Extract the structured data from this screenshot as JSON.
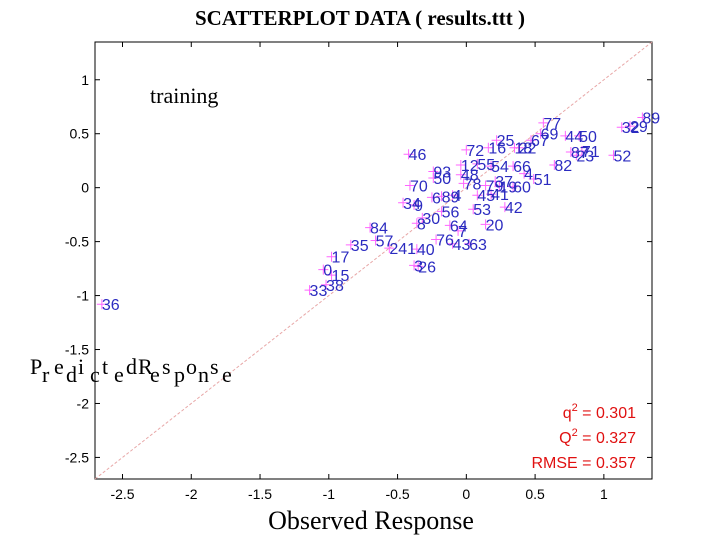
{
  "chart_data": {
    "type": "scatter",
    "title": "SCATTERPLOT DATA ( results.ttt )",
    "xlabel": "Observed Response",
    "ylabel": "Predicted Response",
    "subset_label": "training",
    "xlim": [
      -2.7,
      1.35
    ],
    "ylim": [
      -2.7,
      1.35
    ],
    "xticks": [
      -2.5,
      -2,
      -1.5,
      -1,
      -0.5,
      0,
      0.5,
      1
    ],
    "yticks": [
      1,
      0.5,
      0,
      -0.5,
      -1,
      -1.5,
      -2,
      -2.5
    ],
    "reference_line": "y = x",
    "stats": {
      "q2": "0.301",
      "Q2": "0.327",
      "RMSE": "0.357"
    },
    "stat_labels": {
      "q2": "q",
      "Q2": "Q",
      "RMSE": "RMSE",
      "exponent": "2",
      "equals": " = "
    },
    "colors": {
      "points": "#2b2bc0",
      "markers": "#ff66ff",
      "stats": "#e01010",
      "diagonal": "#e8a8a8"
    },
    "points": [
      {
        "id": "36",
        "x": -2.65,
        "y": -1.08
      },
      {
        "id": "33",
        "x": -1.14,
        "y": -0.95
      },
      {
        "id": "38",
        "x": -1.02,
        "y": -0.9
      },
      {
        "id": "15",
        "x": -0.98,
        "y": -0.81
      },
      {
        "id": "0",
        "x": -1.04,
        "y": -0.76
      },
      {
        "id": "17",
        "x": -0.98,
        "y": -0.64
      },
      {
        "id": "35",
        "x": -0.84,
        "y": -0.53
      },
      {
        "id": "57",
        "x": -0.66,
        "y": -0.49
      },
      {
        "id": "84",
        "x": -0.7,
        "y": -0.37
      },
      {
        "id": "241",
        "x": -0.56,
        "y": -0.56
      },
      {
        "id": "40",
        "x": -0.36,
        "y": -0.57
      },
      {
        "id": "3",
        "x": -0.38,
        "y": -0.72
      },
      {
        "id": "26",
        "x": -0.35,
        "y": -0.73
      },
      {
        "id": "76",
        "x": -0.22,
        "y": -0.48
      },
      {
        "id": "43",
        "x": -0.1,
        "y": -0.52
      },
      {
        "id": "63",
        "x": 0.02,
        "y": -0.52
      },
      {
        "id": "7",
        "x": -0.06,
        "y": -0.4
      },
      {
        "id": "64",
        "x": -0.12,
        "y": -0.35
      },
      {
        "id": "8",
        "x": -0.36,
        "y": -0.33
      },
      {
        "id": "20",
        "x": 0.14,
        "y": -0.34
      },
      {
        "id": "30",
        "x": -0.32,
        "y": -0.28
      },
      {
        "id": "56",
        "x": -0.18,
        "y": -0.22
      },
      {
        "id": "53",
        "x": 0.05,
        "y": -0.2
      },
      {
        "id": "42",
        "x": 0.28,
        "y": -0.18
      },
      {
        "id": "34",
        "x": -0.46,
        "y": -0.14
      },
      {
        "id": "9",
        "x": -0.38,
        "y": -0.16
      },
      {
        "id": "6",
        "x": -0.25,
        "y": -0.09
      },
      {
        "id": "89",
        "x": -0.18,
        "y": -0.08
      },
      {
        "id": "4",
        "x": -0.1,
        "y": -0.07
      },
      {
        "id": "45",
        "x": 0.08,
        "y": -0.07
      },
      {
        "id": "41",
        "x": 0.18,
        "y": -0.06
      },
      {
        "id": "70",
        "x": -0.41,
        "y": 0.02
      },
      {
        "id": "78",
        "x": -0.02,
        "y": 0.04
      },
      {
        "id": "79",
        "x": 0.14,
        "y": 0.02
      },
      {
        "id": "19",
        "x": 0.24,
        "y": 0.01
      },
      {
        "id": "60",
        "x": 0.34,
        "y": 0.01
      },
      {
        "id": "37",
        "x": 0.21,
        "y": 0.06
      },
      {
        "id": "4",
        "x": 0.42,
        "y": 0.13
      },
      {
        "id": "51",
        "x": 0.49,
        "y": 0.08
      },
      {
        "id": "93",
        "x": -0.24,
        "y": 0.15
      },
      {
        "id": "50",
        "x": -0.24,
        "y": 0.09
      },
      {
        "id": "48",
        "x": -0.04,
        "y": 0.12
      },
      {
        "id": "12",
        "x": -0.04,
        "y": 0.21
      },
      {
        "id": "55",
        "x": 0.08,
        "y": 0.22
      },
      {
        "id": "54",
        "x": 0.18,
        "y": 0.2
      },
      {
        "id": "66",
        "x": 0.34,
        "y": 0.2
      },
      {
        "id": "46",
        "x": -0.42,
        "y": 0.31
      },
      {
        "id": "72",
        "x": 0,
        "y": 0.35
      },
      {
        "id": "16",
        "x": 0.16,
        "y": 0.37
      },
      {
        "id": "25",
        "x": 0.22,
        "y": 0.44
      },
      {
        "id": "18",
        "x": 0.35,
        "y": 0.37
      },
      {
        "id": "22",
        "x": 0.38,
        "y": 0.37
      },
      {
        "id": "67",
        "x": 0.47,
        "y": 0.44
      },
      {
        "id": "69",
        "x": 0.54,
        "y": 0.5
      },
      {
        "id": "77",
        "x": 0.56,
        "y": 0.6
      },
      {
        "id": "44",
        "x": 0.72,
        "y": 0.48
      },
      {
        "id": "50",
        "x": 0.82,
        "y": 0.48
      },
      {
        "id": "82",
        "x": 0.64,
        "y": 0.21
      },
      {
        "id": "87",
        "x": 0.76,
        "y": 0.33
      },
      {
        "id": "23",
        "x": 0.8,
        "y": 0.3
      },
      {
        "id": "71",
        "x": 0.84,
        "y": 0.34
      },
      {
        "id": "52",
        "x": 1.07,
        "y": 0.3
      },
      {
        "id": "32",
        "x": 1.13,
        "y": 0.56
      },
      {
        "id": "29",
        "x": 1.19,
        "y": 0.57
      },
      {
        "id": "89",
        "x": 1.28,
        "y": 0.65
      }
    ]
  }
}
